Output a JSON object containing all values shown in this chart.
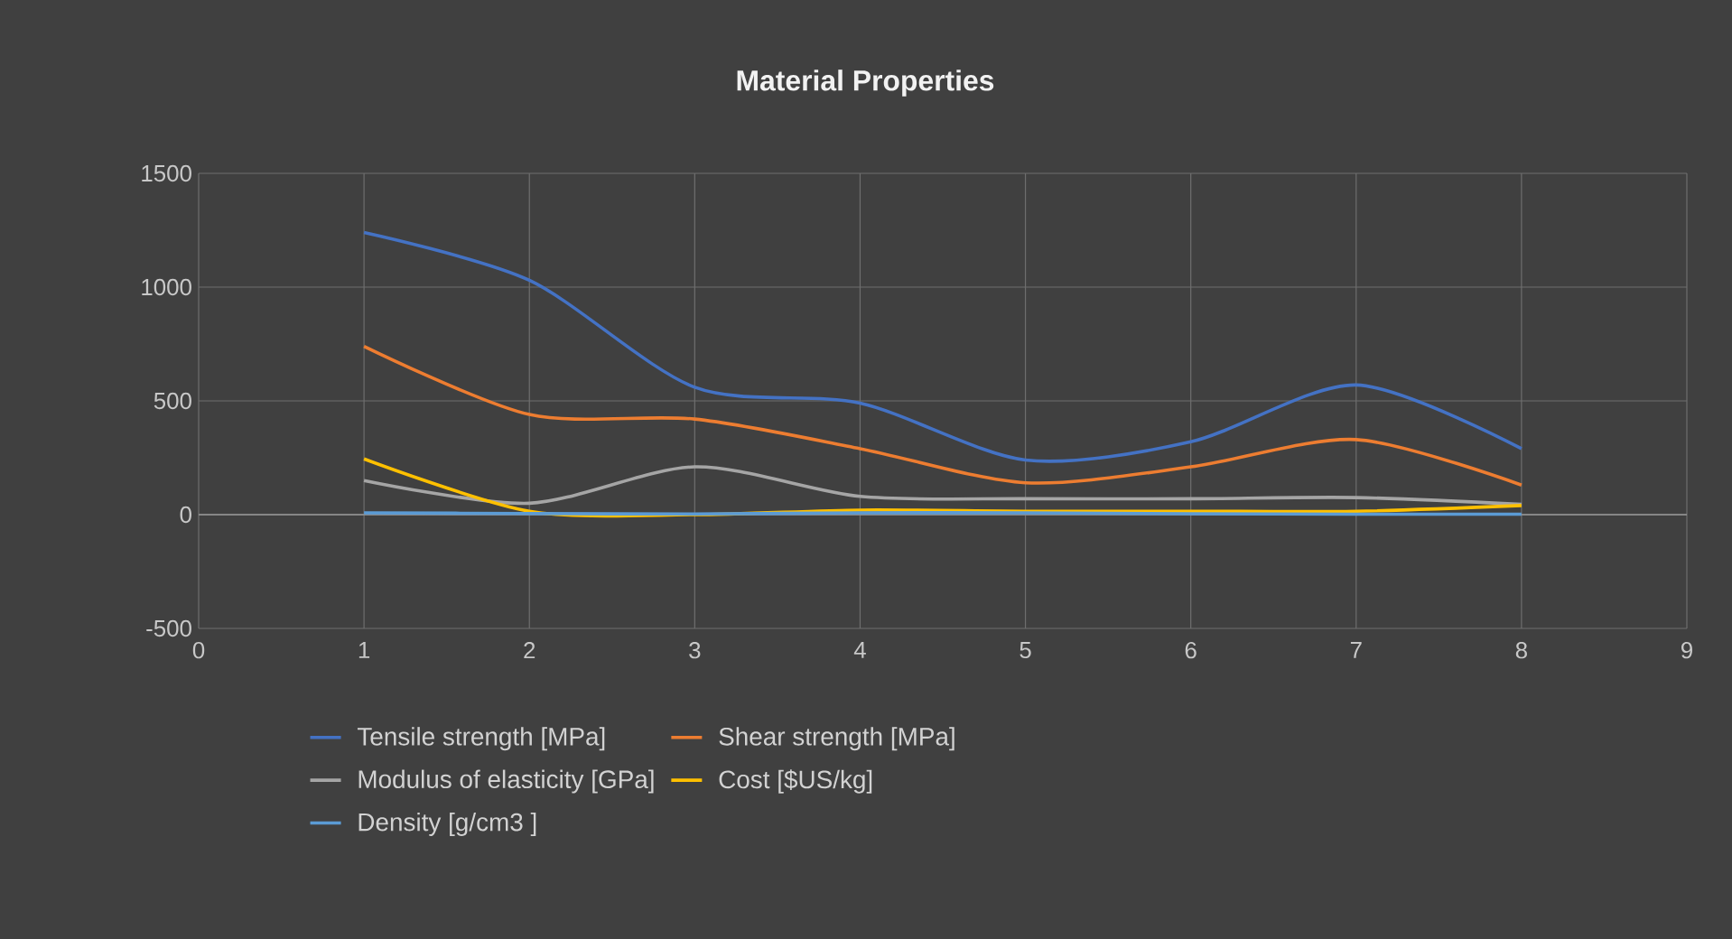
{
  "chart_data": {
    "type": "line",
    "title": "Material Properties",
    "x": [
      1,
      2,
      3,
      4,
      5,
      6,
      7,
      8
    ],
    "xlim": [
      0,
      9
    ],
    "xticks": [
      0,
      1,
      2,
      3,
      4,
      5,
      6,
      7,
      8,
      9
    ],
    "ylim": [
      -500,
      1500
    ],
    "yticks": [
      -500,
      0,
      500,
      1000,
      1500
    ],
    "grid": true,
    "legend": "bottom",
    "marker": "none",
    "line_style": "solid",
    "series": [
      {
        "name": "Tensile strength [MPa]",
        "color": "#4472c4",
        "values": [
          1240,
          1030,
          560,
          490,
          240,
          320,
          570,
          290
        ]
      },
      {
        "name": "Shear strength [MPa]",
        "color": "#ed7d31",
        "values": [
          740,
          440,
          420,
          290,
          140,
          210,
          330,
          130
        ]
      },
      {
        "name": "Modulus of elasticity [GPa]",
        "color": "#a5a5a5",
        "values": [
          150,
          50,
          210,
          80,
          70,
          70,
          75,
          45
        ]
      },
      {
        "name": "Cost [$US/kg]",
        "color": "#ffc000",
        "values": [
          245,
          15,
          0,
          20,
          15,
          15,
          15,
          40
        ]
      },
      {
        "name": "Density [g/cm3 ]",
        "color": "#5b9bd5",
        "values": [
          8,
          5,
          3,
          8,
          8,
          4,
          2,
          2
        ]
      }
    ]
  }
}
